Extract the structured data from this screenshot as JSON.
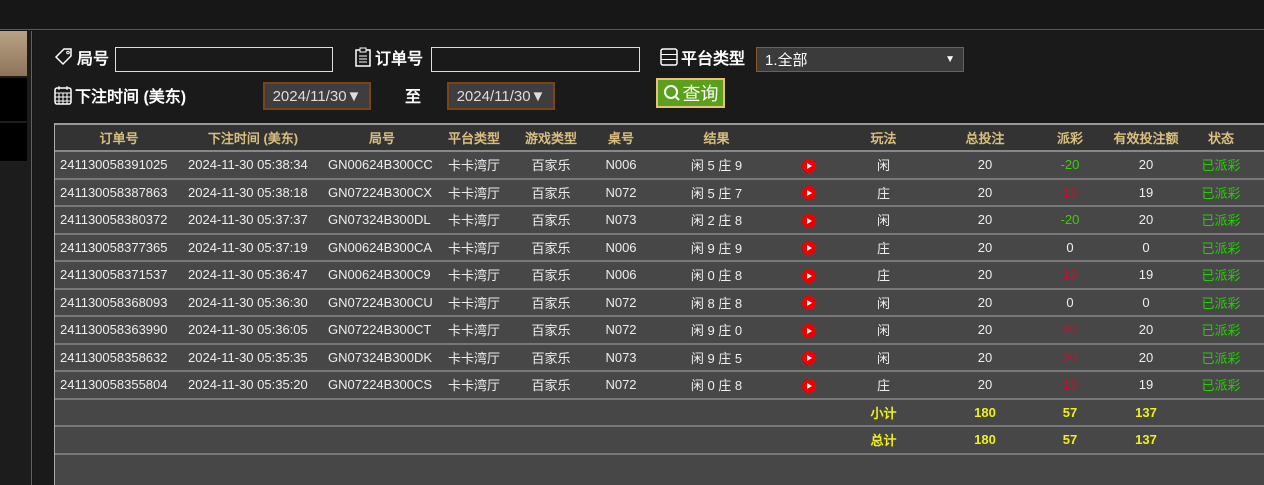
{
  "filters": {
    "round_label": "局号",
    "round_value": "",
    "order_label": "订单号",
    "order_value": "",
    "platform_label": "平台类型",
    "platform_value": "1.全部",
    "time_label": "下注时间 (美东)",
    "date_from": "2024/11/30▼",
    "to_label": "至",
    "date_to": "2024/11/30▼",
    "query_label": "查询"
  },
  "table": {
    "headers": [
      "订单号",
      "下注时间 (美东)",
      "局号",
      "平台类型",
      "游戏类型",
      "桌号",
      "结果",
      "",
      "玩法",
      "总投注",
      "派彩",
      "有效投注额",
      "状态"
    ],
    "rows": [
      {
        "order": "241130058391025",
        "time": "2024-11-30 05:38:34",
        "round": "GN00624B300CC",
        "platform": "卡卡湾厅",
        "game": "百家乐",
        "table": "N006",
        "result": "闲 5 庄 9",
        "play": "闲",
        "bet": "20",
        "payout": "-20",
        "payout_color": "#39d000",
        "valid": "20",
        "status": "已派彩"
      },
      {
        "order": "241130058387863",
        "time": "2024-11-30 05:38:18",
        "round": "GN07224B300CX",
        "platform": "卡卡湾厅",
        "game": "百家乐",
        "table": "N072",
        "result": "闲 5 庄 7",
        "play": "庄",
        "bet": "20",
        "payout": "19",
        "payout_color": "#c8102e",
        "valid": "19",
        "status": "已派彩"
      },
      {
        "order": "241130058380372",
        "time": "2024-11-30 05:37:37",
        "round": "GN07324B300DL",
        "platform": "卡卡湾厅",
        "game": "百家乐",
        "table": "N073",
        "result": "闲 2 庄 8",
        "play": "闲",
        "bet": "20",
        "payout": "-20",
        "payout_color": "#39d000",
        "valid": "20",
        "status": "已派彩"
      },
      {
        "order": "241130058377365",
        "time": "2024-11-30 05:37:19",
        "round": "GN00624B300CA",
        "platform": "卡卡湾厅",
        "game": "百家乐",
        "table": "N006",
        "result": "闲 9 庄 9",
        "play": "庄",
        "bet": "20",
        "payout": "0",
        "payout_color": "#eeeeee",
        "valid": "0",
        "status": "已派彩"
      },
      {
        "order": "241130058371537",
        "time": "2024-11-30 05:36:47",
        "round": "GN00624B300C9",
        "platform": "卡卡湾厅",
        "game": "百家乐",
        "table": "N006",
        "result": "闲 0 庄 8",
        "play": "庄",
        "bet": "20",
        "payout": "19",
        "payout_color": "#c8102e",
        "valid": "19",
        "status": "已派彩"
      },
      {
        "order": "241130058368093",
        "time": "2024-11-30 05:36:30",
        "round": "GN07224B300CU",
        "platform": "卡卡湾厅",
        "game": "百家乐",
        "table": "N072",
        "result": "闲 8 庄 8",
        "play": "闲",
        "bet": "20",
        "payout": "0",
        "payout_color": "#eeeeee",
        "valid": "0",
        "status": "已派彩"
      },
      {
        "order": "241130058363990",
        "time": "2024-11-30 05:36:05",
        "round": "GN07224B300CT",
        "platform": "卡卡湾厅",
        "game": "百家乐",
        "table": "N072",
        "result": "闲 9 庄 0",
        "play": "闲",
        "bet": "20",
        "payout": "20",
        "payout_color": "#c8102e",
        "valid": "20",
        "status": "已派彩"
      },
      {
        "order": "241130058358632",
        "time": "2024-11-30 05:35:35",
        "round": "GN07324B300DK",
        "platform": "卡卡湾厅",
        "game": "百家乐",
        "table": "N073",
        "result": "闲 9 庄 5",
        "play": "闲",
        "bet": "20",
        "payout": "20",
        "payout_color": "#c8102e",
        "valid": "20",
        "status": "已派彩"
      },
      {
        "order": "241130058355804",
        "time": "2024-11-30 05:35:20",
        "round": "GN07224B300CS",
        "platform": "卡卡湾厅",
        "game": "百家乐",
        "table": "N072",
        "result": "闲 0 庄 8",
        "play": "庄",
        "bet": "20",
        "payout": "19",
        "payout_color": "#c8102e",
        "valid": "19",
        "status": "已派彩"
      }
    ],
    "subtotal": {
      "label": "小计",
      "bet": "180",
      "payout": "57",
      "valid": "137"
    },
    "total": {
      "label": "总计",
      "bet": "180",
      "payout": "57",
      "valid": "137"
    },
    "status_color": "#22d000"
  }
}
